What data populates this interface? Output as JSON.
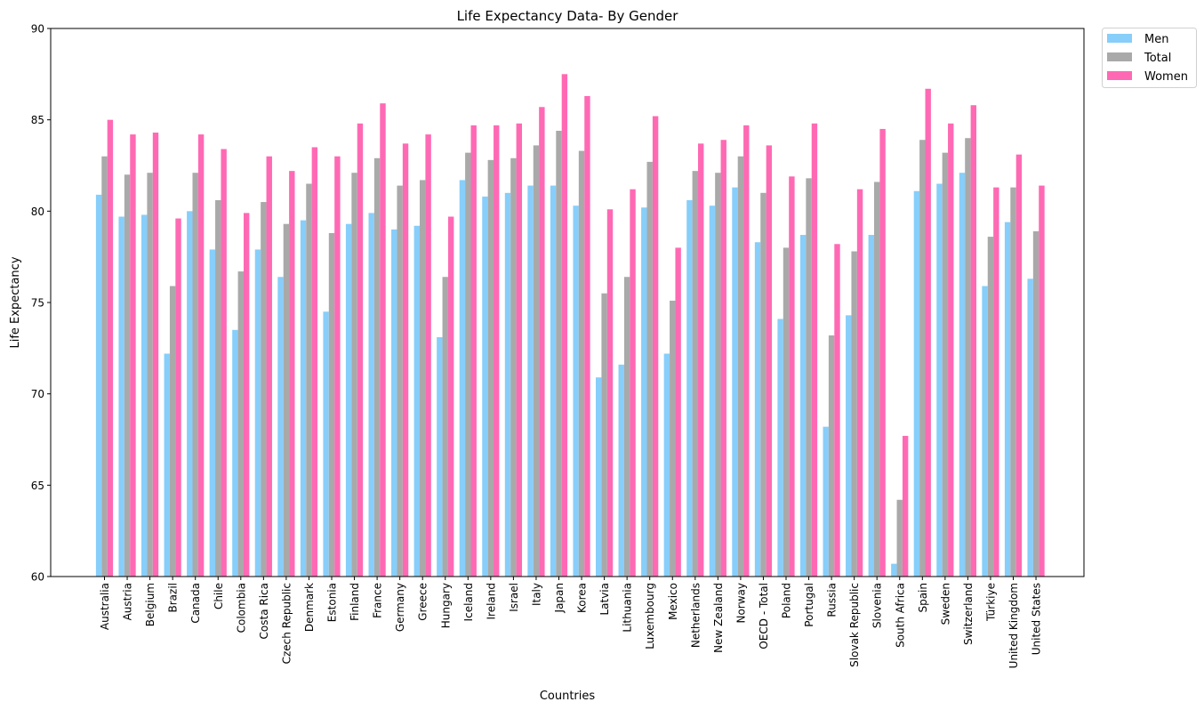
{
  "chart_data": {
    "type": "bar",
    "title": "Life Expectancy Data- By Gender",
    "xlabel": "Countries",
    "ylabel": "Life Expectancy",
    "ylim": [
      60,
      90
    ],
    "yticks": [
      60,
      65,
      70,
      75,
      80,
      85,
      90
    ],
    "legend_position": "outside-top-right",
    "grid": false,
    "categories": [
      "Australia",
      "Austria",
      "Belgium",
      "Brazil",
      "Canada",
      "Chile",
      "Colombia",
      "Costa Rica",
      "Czech Republic",
      "Denmark",
      "Estonia",
      "Finland",
      "France",
      "Germany",
      "Greece",
      "Hungary",
      "Iceland",
      "Ireland",
      "Israel",
      "Italy",
      "Japan",
      "Korea",
      "Latvia",
      "Lithuania",
      "Luxembourg",
      "Mexico",
      "Netherlands",
      "New Zealand",
      "Norway",
      "OECD - Total",
      "Poland",
      "Portugal",
      "Russia",
      "Slovak Republic",
      "Slovenia",
      "South Africa",
      "Spain",
      "Sweden",
      "Switzerland",
      "Türkiye",
      "United Kingdom",
      "United States"
    ],
    "series": [
      {
        "name": "Men",
        "color": "#87cefa",
        "values": [
          80.9,
          79.7,
          79.8,
          72.2,
          80.0,
          77.9,
          73.5,
          77.9,
          76.4,
          79.5,
          74.5,
          79.3,
          79.9,
          79.0,
          79.2,
          73.1,
          81.7,
          80.8,
          81.0,
          81.4,
          81.4,
          80.3,
          70.9,
          71.6,
          80.2,
          72.2,
          80.6,
          80.3,
          81.3,
          78.3,
          74.1,
          78.7,
          68.2,
          74.3,
          78.7,
          60.7,
          81.1,
          81.5,
          82.1,
          75.9,
          79.4,
          76.3
        ]
      },
      {
        "name": "Total",
        "color": "#a9a9a9",
        "values": [
          83.0,
          82.0,
          82.1,
          75.9,
          82.1,
          80.6,
          76.7,
          80.5,
          79.3,
          81.5,
          78.8,
          82.1,
          82.9,
          81.4,
          81.7,
          76.4,
          83.2,
          82.8,
          82.9,
          83.6,
          84.4,
          83.3,
          75.5,
          76.4,
          82.7,
          75.1,
          82.2,
          82.1,
          83.0,
          81.0,
          78.0,
          81.8,
          73.2,
          77.8,
          81.6,
          64.2,
          83.9,
          83.2,
          84.0,
          78.6,
          81.3,
          78.9
        ]
      },
      {
        "name": "Women",
        "color": "#ff69b4",
        "values": [
          85.0,
          84.2,
          84.3,
          79.6,
          84.2,
          83.4,
          79.9,
          83.0,
          82.2,
          83.5,
          83.0,
          84.8,
          85.9,
          83.7,
          84.2,
          79.7,
          84.7,
          84.7,
          84.8,
          85.7,
          87.5,
          86.3,
          80.1,
          81.2,
          85.2,
          78.0,
          83.7,
          83.9,
          84.7,
          83.6,
          81.9,
          84.8,
          78.2,
          81.2,
          84.5,
          67.7,
          86.7,
          84.8,
          85.8,
          81.3,
          83.1,
          81.4
        ]
      }
    ]
  }
}
